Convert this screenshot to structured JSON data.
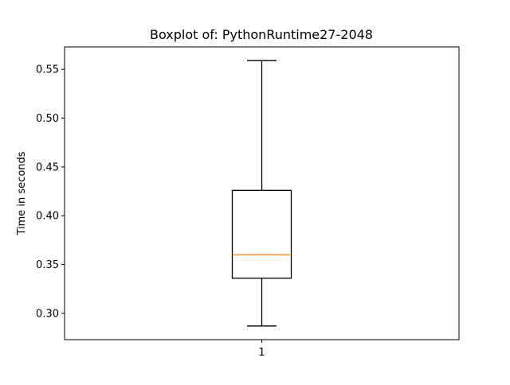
{
  "chart_data": {
    "type": "boxplot",
    "title": "Boxplot of: PythonRuntime27-2048",
    "xlabel": "",
    "ylabel": "Time in seconds",
    "categories": [
      "1"
    ],
    "ylim": [
      0.273,
      0.573
    ],
    "yticks": [
      0.3,
      0.35,
      0.4,
      0.45,
      0.5,
      0.55
    ],
    "ytick_labels": [
      "0.30",
      "0.35",
      "0.40",
      "0.45",
      "0.50",
      "0.55"
    ],
    "series": [
      {
        "whisker_low": 0.287,
        "q1": 0.336,
        "median": 0.36,
        "q3": 0.426,
        "whisker_high": 0.559
      }
    ],
    "grid": false,
    "legend": "none",
    "colors": {
      "box": "#000000",
      "median": "#ff7f0e",
      "whisker": "#000000"
    }
  }
}
